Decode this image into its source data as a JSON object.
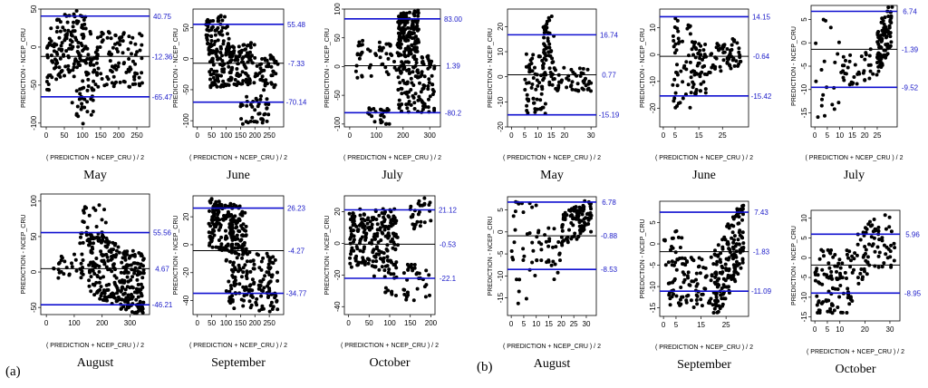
{
  "figure": {
    "panel_a_label": "(a)",
    "panel_b_label": "(b)"
  },
  "colors": {
    "limit_line": "#1010d0",
    "mean_line": "#000000",
    "points": "#000000",
    "limit_text": "#1a1ac8"
  },
  "chart_data": [
    {
      "id": "a-may",
      "panel": "a",
      "type": "scatter",
      "title": "May",
      "xlabel": "( PREDICTION + NCEP_CRU ) / 2",
      "ylabel": "PREDICTION - NCEP_CRU",
      "xlim": [
        -15,
        285
      ],
      "ylim": [
        -105,
        50
      ],
      "xticks": [
        0,
        50,
        100,
        150,
        200,
        250
      ],
      "yticks": [
        -100,
        -50,
        0,
        50
      ],
      "upper": 40.75,
      "mean": -12.36,
      "lower": -65.47,
      "upper_label": "40.75",
      "mean_label": "-12.36",
      "lower_label": "-65.47",
      "seed": 11,
      "clusters": [
        {
          "n": 150,
          "x": [
            0,
            110
          ],
          "y": [
            -40,
            45
          ],
          "t": 0.45
        },
        {
          "n": 60,
          "x": [
            70,
            145
          ],
          "y": [
            -100,
            -20
          ],
          "t": 0.55
        },
        {
          "n": 110,
          "x": [
            110,
            265
          ],
          "y": [
            -55,
            20
          ],
          "t": -0.05
        }
      ]
    },
    {
      "id": "a-june",
      "panel": "a",
      "type": "scatter",
      "title": "June",
      "xlabel": "( PREDICTION + NCEP_CRU ) / 2",
      "ylabel": "PREDICTION - NCEP_CRU",
      "xlim": [
        -15,
        300
      ],
      "ylim": [
        -110,
        80
      ],
      "xticks": [
        0,
        50,
        100,
        150,
        200,
        250
      ],
      "yticks": [
        -100,
        -50,
        0,
        50
      ],
      "upper": 55.48,
      "mean": -7.33,
      "lower": -70.14,
      "upper_label": "55.48",
      "mean_label": "-7.33",
      "lower_label": "-70.14",
      "seed": 23,
      "clusters": [
        {
          "n": 60,
          "x": [
            30,
            110
          ],
          "y": [
            10,
            70
          ],
          "t": 0.2
        },
        {
          "n": 180,
          "x": [
            40,
            200
          ],
          "y": [
            -45,
            25
          ],
          "t": 0.05
        },
        {
          "n": 40,
          "x": [
            150,
            250
          ],
          "y": [
            -105,
            -60
          ],
          "t": 0.1
        },
        {
          "n": 50,
          "x": [
            200,
            280
          ],
          "y": [
            -50,
            5
          ],
          "t": 0.1
        }
      ]
    },
    {
      "id": "a-july",
      "panel": "a",
      "type": "scatter",
      "title": "July",
      "xlabel": "( PREDICTION + NCEP_CRU ) / 2",
      "ylabel": "PREDICTION - NCEP_CRU",
      "xlim": [
        -20,
        340
      ],
      "ylim": [
        -105,
        100
      ],
      "xticks": [
        0,
        100,
        200,
        300
      ],
      "yticks": [
        -100,
        -50,
        0,
        50,
        100
      ],
      "upper": 83.0,
      "mean": 1.39,
      "lower": -80.2,
      "upper_label": "83.00",
      "mean_label": "1.39",
      "lower_label": "-80.2",
      "seed": 37,
      "clusters": [
        {
          "n": 150,
          "x": [
            180,
            260
          ],
          "y": [
            20,
            95
          ],
          "t": 0.1
        },
        {
          "n": 130,
          "x": [
            180,
            320
          ],
          "y": [
            -80,
            20
          ],
          "t": 0.0
        },
        {
          "n": 50,
          "x": [
            20,
            180
          ],
          "y": [
            -20,
            45
          ],
          "t": 0.0
        },
        {
          "n": 25,
          "x": [
            60,
            150
          ],
          "y": [
            -105,
            -70
          ],
          "t": 0.0
        }
      ]
    },
    {
      "id": "b-may",
      "panel": "b",
      "type": "scatter",
      "title": "May",
      "xlabel": "( PREDICTION + NCEP_CRU ) / 2",
      "ylabel": "PREDICTION - NCEP_CRU",
      "xlim": [
        -1.5,
        32
      ],
      "ylim": [
        -20,
        27
      ],
      "xticks": [
        0,
        5,
        10,
        15,
        20,
        30
      ],
      "yticks": [
        -20,
        -10,
        0,
        10,
        20
      ],
      "upper": 16.74,
      "mean": 0.77,
      "lower": -15.19,
      "upper_label": "16.74",
      "mean_label": "0.77",
      "lower_label": "-15.19",
      "seed": 53,
      "clusters": [
        {
          "n": 40,
          "x": [
            12,
            16
          ],
          "y": [
            5,
            25
          ],
          "t": 0.0
        },
        {
          "n": 70,
          "x": [
            5,
            13
          ],
          "y": [
            -15,
            10
          ],
          "t": 0.0
        },
        {
          "n": 60,
          "x": [
            14,
            30
          ],
          "y": [
            -6,
            4
          ],
          "t": 0.0
        }
      ]
    },
    {
      "id": "b-june",
      "panel": "b",
      "type": "scatter",
      "title": "June",
      "xlabel": "( PREDICTION + NCEP_CRU ) / 2",
      "ylabel": "PREDICTION - NCEP_CRU",
      "xlim": [
        -1.5,
        36
      ],
      "ylim": [
        -27,
        17
      ],
      "xticks": [
        0,
        5,
        15,
        25
      ],
      "yticks": [
        -20,
        -10,
        0,
        10
      ],
      "upper": 14.15,
      "mean": -0.64,
      "lower": -15.42,
      "upper_label": "14.15",
      "mean_label": "-0.64",
      "lower_label": "-15.42",
      "seed": 67,
      "clusters": [
        {
          "n": 50,
          "x": [
            4,
            12
          ],
          "y": [
            -20,
            15
          ],
          "t": 0.0
        },
        {
          "n": 50,
          "x": [
            12,
            18
          ],
          "y": [
            -15,
            5
          ],
          "t": 0.0
        },
        {
          "n": 60,
          "x": [
            18,
            33
          ],
          "y": [
            -6,
            5
          ],
          "t": 0.3
        }
      ]
    },
    {
      "id": "b-july",
      "panel": "b",
      "type": "scatter",
      "title": "July",
      "xlabel": "( PREDICTION + NCEP_CRU ) / 2",
      "ylabel": "PREDICTION - NCEP_CRU",
      "xlim": [
        -1.5,
        33
      ],
      "ylim": [
        -18,
        8
      ],
      "xticks": [
        0,
        5,
        10,
        15,
        20,
        25
      ],
      "yticks": [
        -15,
        -10,
        -5,
        0,
        5
      ],
      "upper": 6.74,
      "mean": -1.39,
      "lower": -9.52,
      "upper_label": "6.74",
      "mean_label": "-1.39",
      "lower_label": "-9.52",
      "seed": 79,
      "clusters": [
        {
          "n": 20,
          "x": [
            0,
            10
          ],
          "y": [
            -16,
            7
          ],
          "t": 0.0
        },
        {
          "n": 40,
          "x": [
            10,
            25
          ],
          "y": [
            -9,
            -2
          ],
          "t": 0.35
        },
        {
          "n": 100,
          "x": [
            25,
            31
          ],
          "y": [
            -4,
            7
          ],
          "t": 0.7
        }
      ]
    },
    {
      "id": "a-august",
      "panel": "a",
      "type": "scatter",
      "title": "August",
      "xlabel": "( PREDICTION + NCEP_CRU ) / 2",
      "ylabel": "PREDICTION - NCEP_CRU",
      "xlim": [
        -20,
        370
      ],
      "ylim": [
        -60,
        110
      ],
      "xticks": [
        0,
        100,
        200,
        300
      ],
      "yticks": [
        -50,
        0,
        50,
        100
      ],
      "upper": 55.56,
      "mean": 4.67,
      "lower": -46.21,
      "upper_label": "55.56",
      "mean_label": "4.67",
      "lower_label": "-46.21",
      "seed": 97,
      "clusters": [
        {
          "n": 40,
          "x": [
            120,
            220
          ],
          "y": [
            40,
            100
          ],
          "t": 0.0
        },
        {
          "n": 300,
          "x": [
            150,
            350
          ],
          "y": [
            -50,
            40
          ],
          "t": -0.35
        },
        {
          "n": 30,
          "x": [
            20,
            140
          ],
          "y": [
            -10,
            25
          ],
          "t": 0.0
        }
      ]
    },
    {
      "id": "a-september",
      "panel": "a",
      "type": "scatter",
      "title": "September",
      "xlabel": "( PREDICTION + NCEP_CRU ) / 2",
      "ylabel": "PREDICTION - NCEP_CRU",
      "xlim": [
        -15,
        300
      ],
      "ylim": [
        -50,
        35
      ],
      "xticks": [
        0,
        50,
        100,
        150,
        200,
        250
      ],
      "yticks": [
        -40,
        -20,
        0,
        20
      ],
      "upper": 26.23,
      "mean": -4.27,
      "lower": -34.77,
      "upper_label": "26.23",
      "mean_label": "-4.27",
      "lower_label": "-34.77",
      "seed": 113,
      "clusters": [
        {
          "n": 200,
          "x": [
            40,
            170
          ],
          "y": [
            -5,
            30
          ],
          "t": -0.2
        },
        {
          "n": 160,
          "x": [
            100,
            280
          ],
          "y": [
            -48,
            -5
          ],
          "t": -0.1
        }
      ]
    },
    {
      "id": "a-october",
      "panel": "a",
      "type": "scatter",
      "title": "October",
      "xlabel": "( PREDICTION + NCEP_CRU ) / 2",
      "ylabel": "PREDICTION - NCEP_CRU",
      "xlim": [
        -10,
        210
      ],
      "ylim": [
        -45,
        30
      ],
      "xticks": [
        0,
        50,
        100,
        150,
        200
      ],
      "yticks": [
        -40,
        -20,
        0,
        20
      ],
      "upper": 21.12,
      "mean": -0.53,
      "lower": -22.1,
      "upper_label": "21.12",
      "mean_label": "-0.53",
      "lower_label": "-22.1",
      "seed": 131,
      "clusters": [
        {
          "n": 200,
          "x": [
            0,
            120
          ],
          "y": [
            -15,
            22
          ],
          "t": 0.0
        },
        {
          "n": 60,
          "x": [
            60,
            200
          ],
          "y": [
            -35,
            -10
          ],
          "t": -0.35
        },
        {
          "n": 30,
          "x": [
            150,
            200
          ],
          "y": [
            10,
            28
          ],
          "t": 0.2
        }
      ]
    },
    {
      "id": "b-august",
      "panel": "b",
      "type": "scatter",
      "title": "August",
      "xlabel": "( PREDICTION + NCEP_CRU ) / 2",
      "ylabel": "PREDICTION - NCEP_CRU",
      "xlim": [
        -1.5,
        34
      ],
      "ylim": [
        -19,
        8
      ],
      "xticks": [
        0,
        5,
        10,
        15,
        20,
        25,
        30
      ],
      "yticks": [
        -15,
        -10,
        -5,
        0,
        5
      ],
      "upper": 6.78,
      "mean": -0.88,
      "lower": -8.53,
      "upper_label": "6.78",
      "mean_label": "-0.88",
      "lower_label": "-8.53",
      "seed": 151,
      "clusters": [
        {
          "n": 30,
          "x": [
            0,
            10
          ],
          "y": [
            -17,
            7
          ],
          "t": 0.0
        },
        {
          "n": 30,
          "x": [
            10,
            20
          ],
          "y": [
            -12,
            1
          ],
          "t": 0.0
        },
        {
          "n": 100,
          "x": [
            20,
            32
          ],
          "y": [
            -2,
            6
          ],
          "t": 0.5
        }
      ]
    },
    {
      "id": "b-september",
      "panel": "b",
      "type": "scatter",
      "title": "September",
      "xlabel": "( PREDICTION + NCEP_CRU ) / 2",
      "ylabel": "PREDICTION - NCEP_CRU",
      "xlim": [
        -1.5,
        34
      ],
      "ylim": [
        -17,
        10
      ],
      "xticks": [
        0,
        5,
        15,
        25
      ],
      "yticks": [
        -15,
        -10,
        -5,
        0,
        5
      ],
      "upper": 7.43,
      "mean": -1.83,
      "lower": -11.09,
      "upper_label": "7.43",
      "mean_label": "-1.83",
      "lower_label": "-11.09",
      "seed": 173,
      "clusters": [
        {
          "n": 90,
          "x": [
            2,
            20
          ],
          "y": [
            -15,
            -3
          ],
          "t": 0.0
        },
        {
          "n": 170,
          "x": [
            20,
            32
          ],
          "y": [
            -12,
            5
          ],
          "t": 0.8
        },
        {
          "n": 20,
          "x": [
            0,
            8
          ],
          "y": [
            -5,
            4
          ],
          "t": 0.0
        }
      ]
    },
    {
      "id": "b-october",
      "panel": "b",
      "type": "scatter",
      "title": "October",
      "xlabel": "( PREDICTION + NCEP_CRU ) / 2",
      "ylabel": "PREDICTION - NCEP_CRU",
      "xlim": [
        -1.5,
        34
      ],
      "ylim": [
        -16,
        12
      ],
      "xticks": [
        0,
        5,
        10,
        20,
        30
      ],
      "yticks": [
        -15,
        -10,
        -5,
        0,
        5,
        10
      ],
      "upper": 5.96,
      "mean": -1.85,
      "lower": -8.95,
      "upper_label": "5.96",
      "mean_label": "",
      "lower_label": "-8.95",
      "seed": 191,
      "clusters": [
        {
          "n": 100,
          "x": [
            0,
            15
          ],
          "y": [
            -14,
            2
          ],
          "t": 0.0
        },
        {
          "n": 80,
          "x": [
            15,
            32
          ],
          "y": [
            -5,
            10
          ],
          "t": 0.4
        }
      ]
    }
  ]
}
